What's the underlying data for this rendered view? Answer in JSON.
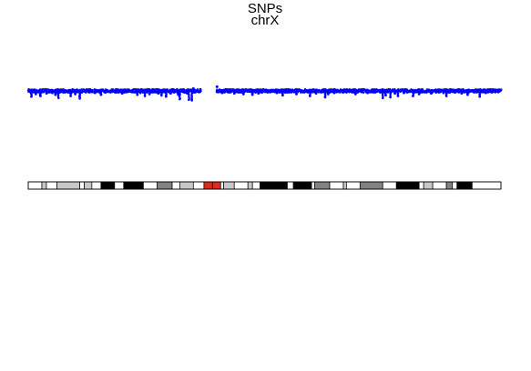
{
  "chart_data": {
    "type": "scatter",
    "title": "SNPs",
    "subtitle": "chrX",
    "xlabel": "",
    "ylabel": "",
    "xlim": [
      0,
      156
    ],
    "ylim": [
      0,
      1
    ],
    "grid": false,
    "legend": "none",
    "colors": {
      "points": "#0000ff",
      "band_outline": "#000000",
      "centromere": "#d92b1f"
    },
    "baseline": 0.9,
    "gaps": [
      [
        57,
        62
      ]
    ],
    "dips": [
      {
        "x": 1,
        "y": 0.79
      },
      {
        "x": 2.5,
        "y": 0.83
      },
      {
        "x": 4,
        "y": 0.8
      },
      {
        "x": 6,
        "y": 0.84
      },
      {
        "x": 8,
        "y": 0.85
      },
      {
        "x": 9,
        "y": 0.82
      },
      {
        "x": 10,
        "y": 0.77
      },
      {
        "x": 12,
        "y": 0.86
      },
      {
        "x": 14,
        "y": 0.8
      },
      {
        "x": 15.5,
        "y": 0.83
      },
      {
        "x": 17,
        "y": 0.76
      },
      {
        "x": 19,
        "y": 0.86
      },
      {
        "x": 22,
        "y": 0.85
      },
      {
        "x": 24,
        "y": 0.82
      },
      {
        "x": 26,
        "y": 0.87
      },
      {
        "x": 29,
        "y": 0.86
      },
      {
        "x": 31,
        "y": 0.84
      },
      {
        "x": 33,
        "y": 0.87
      },
      {
        "x": 36,
        "y": 0.82
      },
      {
        "x": 37,
        "y": 0.85
      },
      {
        "x": 38.5,
        "y": 0.8
      },
      {
        "x": 40,
        "y": 0.83
      },
      {
        "x": 41,
        "y": 0.86
      },
      {
        "x": 43,
        "y": 0.84
      },
      {
        "x": 44,
        "y": 0.81
      },
      {
        "x": 45.5,
        "y": 0.79
      },
      {
        "x": 47,
        "y": 0.84
      },
      {
        "x": 48,
        "y": 0.86
      },
      {
        "x": 49.5,
        "y": 0.82
      },
      {
        "x": 50,
        "y": 0.75
      },
      {
        "x": 52.5,
        "y": 0.84
      },
      {
        "x": 53,
        "y": 0.74
      },
      {
        "x": 54,
        "y": 0.73
      },
      {
        "x": 55,
        "y": 0.86
      },
      {
        "x": 64,
        "y": 0.85
      },
      {
        "x": 66,
        "y": 0.87
      },
      {
        "x": 68,
        "y": 0.84
      },
      {
        "x": 69.5,
        "y": 0.86
      },
      {
        "x": 71,
        "y": 0.83
      },
      {
        "x": 73,
        "y": 0.87
      },
      {
        "x": 74,
        "y": 0.82
      },
      {
        "x": 76,
        "y": 0.84
      },
      {
        "x": 79,
        "y": 0.86
      },
      {
        "x": 82,
        "y": 0.85
      },
      {
        "x": 84,
        "y": 0.81
      },
      {
        "x": 86,
        "y": 0.86
      },
      {
        "x": 88.5,
        "y": 0.83
      },
      {
        "x": 90,
        "y": 0.86
      },
      {
        "x": 93,
        "y": 0.8
      },
      {
        "x": 95,
        "y": 0.84
      },
      {
        "x": 98,
        "y": 0.78
      },
      {
        "x": 99,
        "y": 0.83
      },
      {
        "x": 101,
        "y": 0.85
      },
      {
        "x": 104,
        "y": 0.86
      },
      {
        "x": 107,
        "y": 0.86
      },
      {
        "x": 108,
        "y": 0.83
      },
      {
        "x": 110,
        "y": 0.87
      },
      {
        "x": 112,
        "y": 0.85
      },
      {
        "x": 114,
        "y": 0.86
      },
      {
        "x": 117,
        "y": 0.77
      },
      {
        "x": 118,
        "y": 0.81
      },
      {
        "x": 119.5,
        "y": 0.78
      },
      {
        "x": 121,
        "y": 0.84
      },
      {
        "x": 122,
        "y": 0.8
      },
      {
        "x": 124,
        "y": 0.85
      },
      {
        "x": 125,
        "y": 0.86
      },
      {
        "x": 127,
        "y": 0.8
      },
      {
        "x": 129,
        "y": 0.83
      },
      {
        "x": 130,
        "y": 0.86
      },
      {
        "x": 133,
        "y": 0.84
      },
      {
        "x": 135,
        "y": 0.87
      },
      {
        "x": 137,
        "y": 0.85
      },
      {
        "x": 138,
        "y": 0.8
      },
      {
        "x": 141,
        "y": 0.86
      },
      {
        "x": 143,
        "y": 0.84
      },
      {
        "x": 145,
        "y": 0.82
      },
      {
        "x": 148,
        "y": 0.86
      },
      {
        "x": 149,
        "y": 0.79
      },
      {
        "x": 151,
        "y": 0.85
      },
      {
        "x": 153,
        "y": 0.86
      }
    ],
    "isolated_points": [
      {
        "x": 62.3,
        "y": 0.95
      },
      {
        "x": 54.5,
        "y": 0.92
      }
    ],
    "ideogram": {
      "track": "chrX",
      "bands": [
        {
          "start": 0,
          "end": 4.5,
          "stain": "gneg"
        },
        {
          "start": 4.5,
          "end": 6,
          "stain": "gpos25"
        },
        {
          "start": 6,
          "end": 9.5,
          "stain": "gneg"
        },
        {
          "start": 9.5,
          "end": 17,
          "stain": "gpos50"
        },
        {
          "start": 17,
          "end": 18.5,
          "stain": "gneg"
        },
        {
          "start": 18.5,
          "end": 21,
          "stain": "gpos25"
        },
        {
          "start": 21,
          "end": 24,
          "stain": "gneg"
        },
        {
          "start": 24,
          "end": 28.5,
          "stain": "gpos100"
        },
        {
          "start": 28.5,
          "end": 31.5,
          "stain": "gneg"
        },
        {
          "start": 31.5,
          "end": 38,
          "stain": "gpos100"
        },
        {
          "start": 38,
          "end": 42.5,
          "stain": "gneg"
        },
        {
          "start": 42.5,
          "end": 47.5,
          "stain": "gpos75"
        },
        {
          "start": 47.5,
          "end": 50,
          "stain": "gneg"
        },
        {
          "start": 50,
          "end": 54.5,
          "stain": "gpos50"
        },
        {
          "start": 54.5,
          "end": 58,
          "stain": "gneg"
        },
        {
          "start": 58,
          "end": 60.8,
          "stain": "acen"
        },
        {
          "start": 60.8,
          "end": 63.5,
          "stain": "acen"
        },
        {
          "start": 63.5,
          "end": 64.5,
          "stain": "gneg"
        },
        {
          "start": 64.5,
          "end": 68,
          "stain": "gpos25"
        },
        {
          "start": 68,
          "end": 72.5,
          "stain": "gneg"
        },
        {
          "start": 72.5,
          "end": 74,
          "stain": "gpos25"
        },
        {
          "start": 74,
          "end": 76.5,
          "stain": "gneg"
        },
        {
          "start": 76.5,
          "end": 85.5,
          "stain": "gpos100"
        },
        {
          "start": 85.5,
          "end": 87.5,
          "stain": "gneg"
        },
        {
          "start": 87.5,
          "end": 93.5,
          "stain": "gpos100"
        },
        {
          "start": 93.5,
          "end": 94.5,
          "stain": "gneg"
        },
        {
          "start": 94.5,
          "end": 99.5,
          "stain": "gpos75"
        },
        {
          "start": 99.5,
          "end": 104,
          "stain": "gneg"
        },
        {
          "start": 104,
          "end": 105,
          "stain": "gpos25"
        },
        {
          "start": 105,
          "end": 109.5,
          "stain": "gneg"
        },
        {
          "start": 109.5,
          "end": 117,
          "stain": "gpos75"
        },
        {
          "start": 117,
          "end": 121.5,
          "stain": "gneg"
        },
        {
          "start": 121.5,
          "end": 129,
          "stain": "gpos100"
        },
        {
          "start": 129,
          "end": 130.5,
          "stain": "gneg"
        },
        {
          "start": 130.5,
          "end": 133.5,
          "stain": "gpos50"
        },
        {
          "start": 133.5,
          "end": 138,
          "stain": "gneg"
        },
        {
          "start": 138,
          "end": 140,
          "stain": "gpos75"
        },
        {
          "start": 140,
          "end": 141.5,
          "stain": "gneg"
        },
        {
          "start": 141.5,
          "end": 146.5,
          "stain": "gpos100"
        },
        {
          "start": 146.5,
          "end": 156,
          "stain": "gneg"
        }
      ],
      "stain_colors": {
        "gneg": "#ffffff",
        "gpos25": "#c8c8c8",
        "gpos50": "#c8c8c8",
        "gpos75": "#828282",
        "gpos100": "#000000",
        "acen": "#d92b1f"
      }
    }
  }
}
